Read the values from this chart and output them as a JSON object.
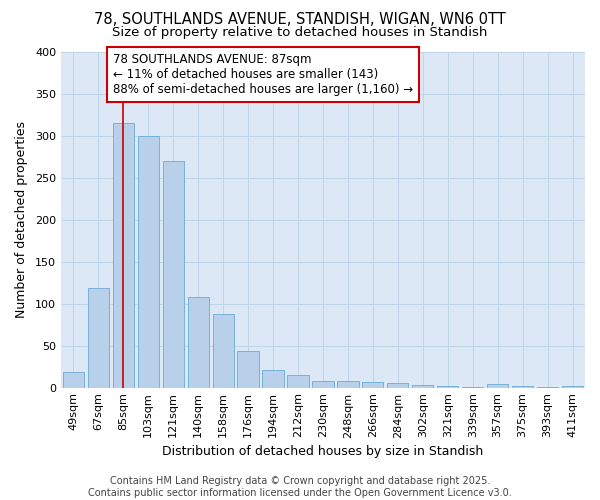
{
  "title": "78, SOUTHLANDS AVENUE, STANDISH, WIGAN, WN6 0TT",
  "subtitle": "Size of property relative to detached houses in Standish",
  "xlabel": "Distribution of detached houses by size in Standish",
  "ylabel": "Number of detached properties",
  "footer_line1": "Contains HM Land Registry data © Crown copyright and database right 2025.",
  "footer_line2": "Contains public sector information licensed under the Open Government Licence v3.0.",
  "categories": [
    "49sqm",
    "67sqm",
    "85sqm",
    "103sqm",
    "121sqm",
    "140sqm",
    "158sqm",
    "176sqm",
    "194sqm",
    "212sqm",
    "230sqm",
    "248sqm",
    "266sqm",
    "284sqm",
    "302sqm",
    "321sqm",
    "339sqm",
    "357sqm",
    "375sqm",
    "393sqm",
    "411sqm"
  ],
  "values": [
    18,
    118,
    315,
    300,
    270,
    108,
    88,
    43,
    21,
    15,
    8,
    8,
    7,
    6,
    3,
    2,
    1,
    4,
    2,
    1,
    2
  ],
  "bar_color": "#b8d0ea",
  "bar_edge_color": "#6aacd6",
  "vline_x": 2,
  "vline_color": "#cc0000",
  "annotation_text": "78 SOUTHLANDS AVENUE: 87sqm\n← 11% of detached houses are smaller (143)\n88% of semi-detached houses are larger (1,160) →",
  "annotation_box_color": "#ffffff",
  "annotation_box_edge_color": "#cc0000",
  "ylim": [
    0,
    400
  ],
  "yticks": [
    0,
    50,
    100,
    150,
    200,
    250,
    300,
    350,
    400
  ],
  "bg_color": "#dce8f5",
  "fig_bg_color": "#ffffff",
  "grid_color": "#c0d4e8",
  "title_fontsize": 10.5,
  "subtitle_fontsize": 9.5,
  "xlabel_fontsize": 9,
  "ylabel_fontsize": 9,
  "tick_fontsize": 8,
  "annotation_fontsize": 8.5,
  "footer_fontsize": 7
}
